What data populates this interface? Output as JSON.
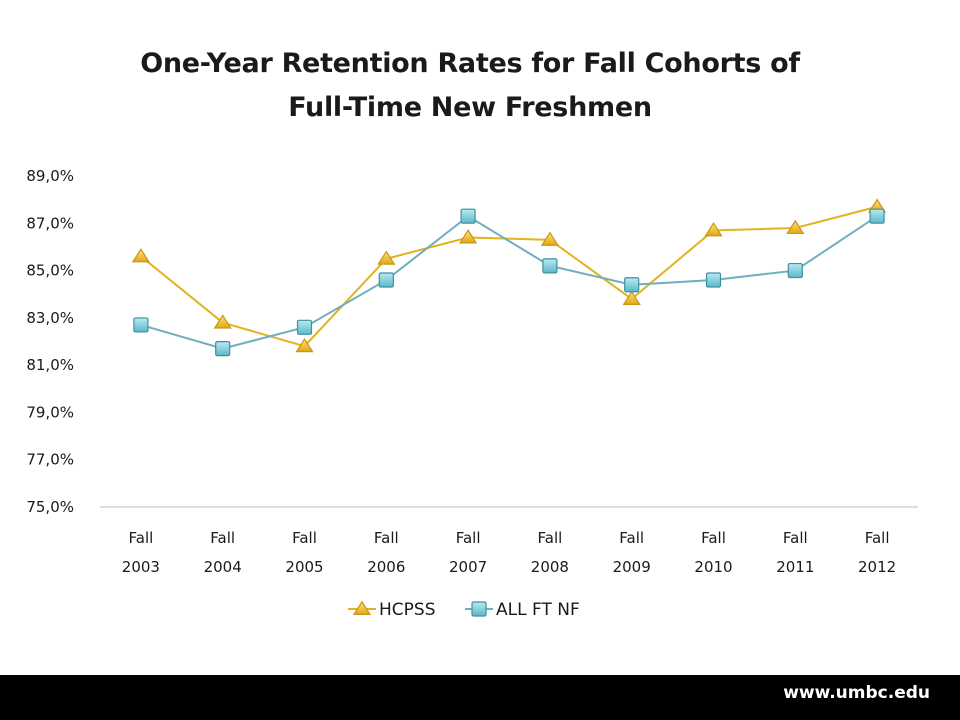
{
  "chart_data": {
    "type": "line",
    "title": "One-Year Retention Rates for Fall Cohorts of Full-Time New Freshmen",
    "title_lines": [
      "One-Year Retention Rates for Fall Cohorts of",
      "Full-Time New Freshmen"
    ],
    "categories": [
      [
        "Fall",
        "2003"
      ],
      [
        "Fall",
        "2004"
      ],
      [
        "Fall",
        "2005"
      ],
      [
        "Fall",
        "2006"
      ],
      [
        "Fall",
        "2007"
      ],
      [
        "Fall",
        "2008"
      ],
      [
        "Fall",
        "2009"
      ],
      [
        "Fall",
        "2010"
      ],
      [
        "Fall",
        "2011"
      ],
      [
        "Fall",
        "2012"
      ]
    ],
    "y_ticks": [
      "75,0%",
      "77,0%",
      "79,0%",
      "81,0%",
      "83,0%",
      "85,0%",
      "87,0%",
      "89,0%"
    ],
    "ylim": [
      75,
      89
    ],
    "xlabel": "",
    "ylabel": "",
    "grid": false,
    "legend_position": "bottom",
    "series": [
      {
        "name": "HCPSS",
        "marker": "triangle",
        "color": "#E8B923",
        "values": [
          85.6,
          82.8,
          81.8,
          85.5,
          86.4,
          86.3,
          83.8,
          86.7,
          86.8,
          87.7
        ]
      },
      {
        "name": "ALL FT NF",
        "marker": "square",
        "color": "#5BB8C9",
        "values": [
          82.7,
          81.7,
          82.6,
          84.6,
          87.3,
          85.2,
          84.4,
          84.6,
          85.0,
          87.3
        ]
      }
    ]
  },
  "footer": {
    "url": "www.umbc.edu"
  }
}
